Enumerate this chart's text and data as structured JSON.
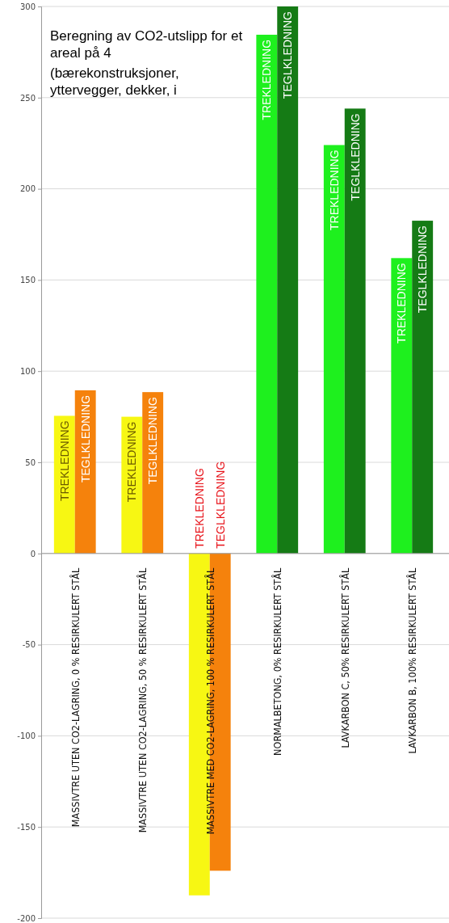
{
  "chart_data": {
    "type": "bar",
    "title": "Beregning av CO2-utslipp for et areal på 4",
    "subtitle": "(bærekonstruksjoner, yttervegger, dekker, i",
    "categories": [
      "MASSIVTRE UTEN CO2-LAGRING, 0 % RESIRKULERT STÅL",
      "MASSIVTRE UTEN CO2-LAGRING, 50 % RESIRKULERT STÅL",
      "MASSIVTRE MED CO2-LAGRING, 100 % RESIRKULERT STÅL",
      "NORMALBETONG, 0% RESIRKULERT STÅL",
      "LAVKARBON C, 50% RESIRKULERT STÅL",
      "LAVKARBON B, 100% RESIRKULERT STÅL"
    ],
    "series": [
      {
        "name": "TREKLEDNING",
        "colors": [
          "#f7f713",
          "#f7f713",
          "#f7f713",
          "#1ef01e",
          "#1ef01e",
          "#1ef01e"
        ],
        "values": [
          75.5,
          75,
          -187.5,
          284.5,
          224,
          162
        ]
      },
      {
        "name": "TEGLKLEDNING",
        "colors": [
          "#f5820c",
          "#f5820c",
          "#f5820c",
          "#157b15",
          "#157b15",
          "#157b15"
        ],
        "values": [
          89.5,
          88.5,
          -174,
          300,
          244,
          182.5
        ]
      }
    ],
    "ylim": [
      -200,
      300
    ],
    "yticks": [
      -200,
      -150,
      -100,
      -50,
      0,
      50,
      100,
      150,
      200,
      250,
      300
    ],
    "grid": "y"
  }
}
